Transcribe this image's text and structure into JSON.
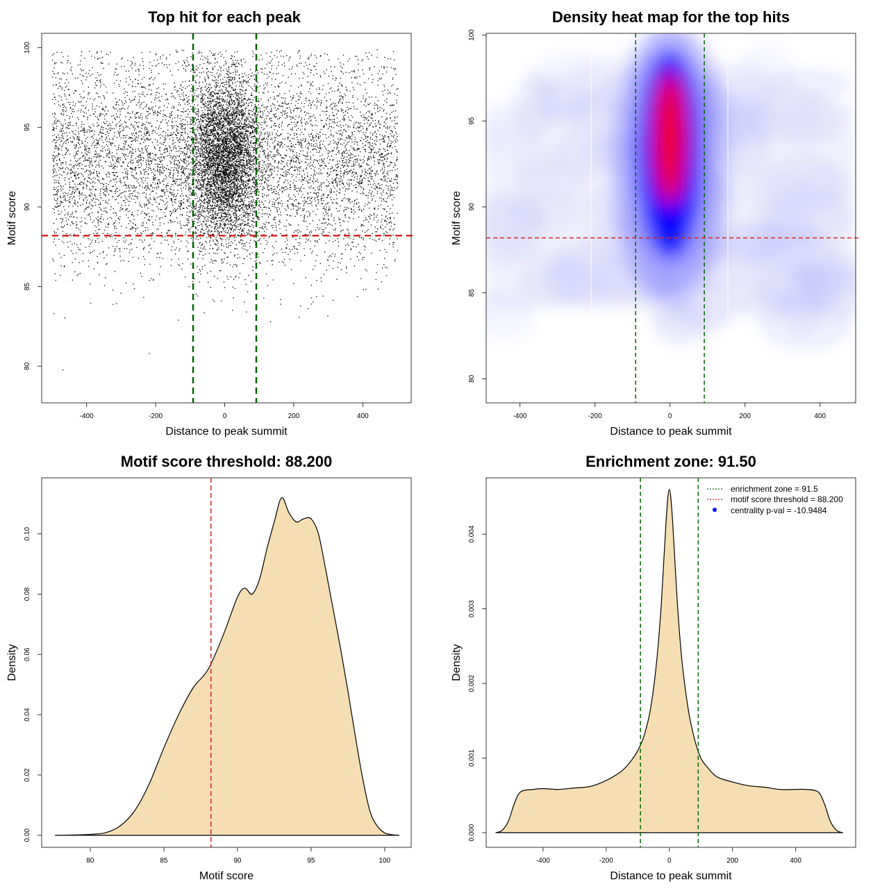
{
  "colors": {
    "zone_line": "#006400",
    "threshold_line": "#dd2222",
    "density_fill": "#f5deb3",
    "points": "#000000",
    "heat_low": "#ffffff",
    "heat_mid": "#0000ff",
    "heat_high": "#ff0000",
    "legend_dot": "#0000ff"
  },
  "chart_data": [
    {
      "id": "scatter",
      "type": "scatter",
      "title": "Top hit for each peak",
      "xlabel": "Distance to peak summit",
      "ylabel": "Motif score",
      "xlim": [
        -530,
        540
      ],
      "ylim": [
        77.7,
        100.9
      ],
      "xticks": [
        -400,
        -200,
        0,
        200,
        400
      ],
      "yticks": [
        80,
        85,
        90,
        95,
        100
      ],
      "xtick_labels": [
        "-400",
        "-200",
        "0",
        "200",
        "400"
      ],
      "ytick_labels": [
        "80",
        "85",
        "90",
        "95",
        "100"
      ],
      "vlines": [
        -91.5,
        91.5
      ],
      "hline": 88.2,
      "x_range_of_points": [
        -500,
        500
      ],
      "central_concentration": {
        "x_center": 0,
        "y_center": 93
      }
    },
    {
      "id": "heatmap",
      "type": "heatmap",
      "title": "Density heat map for the top hits",
      "xlabel": "Distance to peak summit",
      "ylabel": "Motif score",
      "xlim": [
        -490,
        495
      ],
      "ylim": [
        78.6,
        100.1
      ],
      "xticks": [
        -400,
        -200,
        0,
        200,
        400
      ],
      "yticks": [
        80,
        85,
        90,
        95,
        100
      ],
      "xtick_labels": [
        "-400",
        "-200",
        "0",
        "200",
        "400"
      ],
      "ytick_labels": [
        "80",
        "85",
        "90",
        "95",
        "100"
      ],
      "vlines": [
        -91.5,
        91.5
      ],
      "hline": 88.2,
      "peak": {
        "x": 0,
        "y": 94
      },
      "color_scale": [
        "white",
        "blue",
        "red"
      ]
    },
    {
      "id": "score_density",
      "type": "area",
      "title": "Motif score threshold: 88.200",
      "xlabel": "Motif score",
      "ylabel": "Density",
      "xlim": [
        76.7,
        101.8
      ],
      "ylim": [
        -0.004,
        0.1186
      ],
      "xticks": [
        80,
        85,
        90,
        95,
        100
      ],
      "yticks": [
        0.0,
        0.02,
        0.04,
        0.06,
        0.08,
        0.1
      ],
      "xtick_labels": [
        "80",
        "85",
        "90",
        "95",
        "100"
      ],
      "ytick_labels": [
        "0.00",
        "0.02",
        "0.04",
        "0.06",
        "0.08",
        "0.10"
      ],
      "vline": 88.2,
      "x": [
        77.6,
        79.0,
        80.0,
        81.0,
        82.0,
        83.0,
        84.0,
        85.0,
        86.0,
        87.0,
        88.0,
        89.0,
        90.0,
        90.5,
        91.0,
        91.5,
        92.0,
        92.5,
        93.0,
        93.5,
        94.0,
        94.5,
        95.0,
        95.5,
        96.0,
        96.5,
        97.0,
        97.5,
        98.0,
        98.5,
        99.0,
        99.5,
        100.0,
        100.5,
        101.0
      ],
      "y": [
        0.0,
        0.0001,
        0.0003,
        0.0008,
        0.003,
        0.008,
        0.017,
        0.029,
        0.04,
        0.049,
        0.055,
        0.066,
        0.079,
        0.082,
        0.08,
        0.085,
        0.095,
        0.104,
        0.112,
        0.107,
        0.104,
        0.105,
        0.105,
        0.1,
        0.088,
        0.075,
        0.062,
        0.048,
        0.033,
        0.019,
        0.008,
        0.003,
        0.0008,
        0.0002,
        0.0
      ]
    },
    {
      "id": "distance_density",
      "type": "area",
      "title": "Enrichment zone: 91.50",
      "xlabel": "Distance to peak summit",
      "ylabel": "Density",
      "xlim": [
        -580,
        590
      ],
      "ylim": [
        -0.000196,
        0.004755
      ],
      "xticks": [
        -400,
        -200,
        0,
        200,
        400
      ],
      "yticks": [
        0.0,
        0.001,
        0.002,
        0.003,
        0.004
      ],
      "xtick_labels": [
        "-400",
        "-200",
        "0",
        "200",
        "400"
      ],
      "ytick_labels": [
        "0.000",
        "0.001",
        "0.002",
        "0.003",
        "0.004"
      ],
      "vlines": [
        -91.5,
        91.5
      ],
      "x": [
        -550,
        -530,
        -510,
        -490,
        -470,
        -430,
        -400,
        -350,
        -300,
        -250,
        -200,
        -150,
        -120,
        -100,
        -80,
        -60,
        -40,
        -25,
        -10,
        0,
        10,
        25,
        40,
        60,
        80,
        100,
        120,
        150,
        200,
        250,
        300,
        350,
        400,
        430,
        470,
        490,
        510,
        530,
        550
      ],
      "y": [
        0.0,
        3e-05,
        0.00015,
        0.0004,
        0.00055,
        0.00058,
        0.00059,
        0.00058,
        0.0006,
        0.00062,
        0.0007,
        0.00083,
        0.00097,
        0.0011,
        0.0013,
        0.00165,
        0.0023,
        0.0031,
        0.0042,
        0.0046,
        0.0042,
        0.0031,
        0.0023,
        0.00165,
        0.00125,
        0.001,
        0.00088,
        0.00075,
        0.00068,
        0.00063,
        0.00061,
        0.00058,
        0.00058,
        0.00058,
        0.00055,
        0.0004,
        0.00015,
        3e-05,
        0.0
      ],
      "legend": [
        {
          "label": "enrichment zone = 91.5",
          "style": "dotted",
          "color": "#006400"
        },
        {
          "label": "motif score threshold = 88.200",
          "style": "dotted",
          "color": "#dd2222"
        },
        {
          "label": "centrality p-val = -10.9484",
          "style": "dot",
          "color": "#0000ff"
        }
      ],
      "legend_position": "top-right"
    }
  ]
}
